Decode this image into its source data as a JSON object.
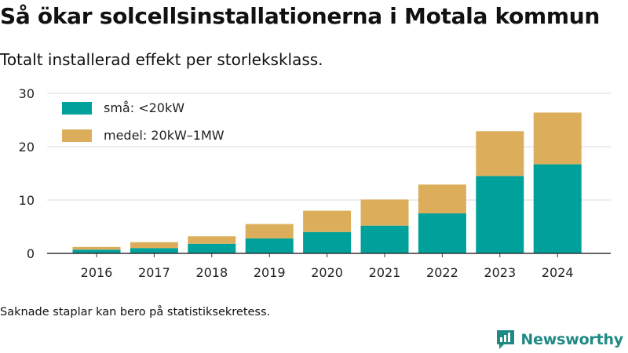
{
  "header": {
    "title": "Så ökar solcellsinstallationerna i Motala kommun",
    "subtitle": "Totalt installerad effekt per storleksklass."
  },
  "footer": {
    "note": "Saknade staplar kan bero på statistiksekretess.",
    "brand": "Newsworthy",
    "brand_icon": "newsworthy-logo-icon"
  },
  "chart_data": {
    "type": "bar",
    "stacked": true,
    "categories": [
      "2016",
      "2017",
      "2018",
      "2019",
      "2020",
      "2021",
      "2022",
      "2023",
      "2024"
    ],
    "series": [
      {
        "name": "små: <20kW",
        "color": "#00a19a",
        "values": [
          0.7,
          1.0,
          1.8,
          2.8,
          4.0,
          5.2,
          7.5,
          14.5,
          16.7
        ]
      },
      {
        "name": "medel: 20kW–1MW",
        "color": "#dcae5c",
        "values": [
          0.5,
          1.1,
          1.4,
          2.7,
          4.0,
          4.9,
          5.4,
          8.4,
          9.7
        ]
      }
    ],
    "yticks": [
      0,
      10,
      20,
      30
    ],
    "ylim": [
      0,
      30
    ],
    "grid": true,
    "legend_position": "top-left",
    "title": "Så ökar solcellsinstallationerna i Motala kommun",
    "subtitle": "Totalt installerad effekt per storleksklass.",
    "xlabel": "",
    "ylabel": ""
  }
}
